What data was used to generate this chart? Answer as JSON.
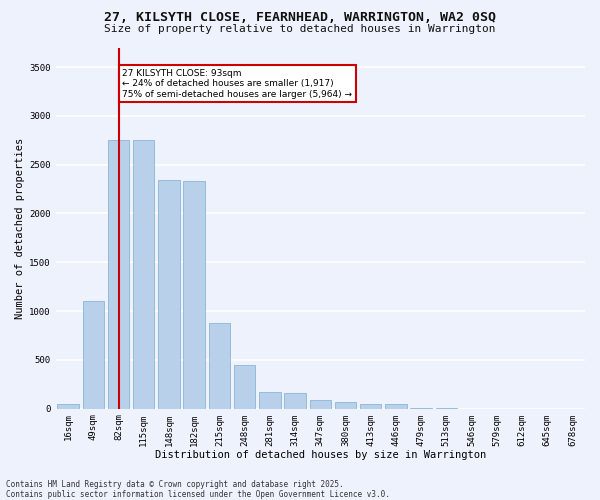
{
  "title_line1": "27, KILSYTH CLOSE, FEARNHEAD, WARRINGTON, WA2 0SQ",
  "title_line2": "Size of property relative to detached houses in Warrington",
  "xlabel": "Distribution of detached houses by size in Warrington",
  "ylabel": "Number of detached properties",
  "bar_color": "#b8d0ea",
  "bar_edge_color": "#7aaed4",
  "categories": [
    "16sqm",
    "49sqm",
    "82sqm",
    "115sqm",
    "148sqm",
    "182sqm",
    "215sqm",
    "248sqm",
    "281sqm",
    "314sqm",
    "347sqm",
    "380sqm",
    "413sqm",
    "446sqm",
    "479sqm",
    "513sqm",
    "546sqm",
    "579sqm",
    "612sqm",
    "645sqm",
    "678sqm"
  ],
  "values": [
    50,
    1100,
    2750,
    2750,
    2340,
    2330,
    880,
    450,
    175,
    165,
    90,
    65,
    45,
    45,
    10,
    10,
    0,
    0,
    0,
    0,
    0
  ],
  "ylim": [
    0,
    3700
  ],
  "yticks": [
    0,
    500,
    1000,
    1500,
    2000,
    2500,
    3000,
    3500
  ],
  "vline_x": 2.0,
  "vline_color": "#cc0000",
  "annotation_text": "27 KILSYTH CLOSE: 93sqm\n← 24% of detached houses are smaller (1,917)\n75% of semi-detached houses are larger (5,964) →",
  "annotation_box_facecolor": "#ffffff",
  "annotation_box_edgecolor": "#cc0000",
  "background_color": "#eef2fc",
  "grid_color": "#ffffff",
  "footer_line1": "Contains HM Land Registry data © Crown copyright and database right 2025.",
  "footer_line2": "Contains public sector information licensed under the Open Government Licence v3.0.",
  "title_fontsize": 9.5,
  "subtitle_fontsize": 8,
  "axis_label_fontsize": 7.5,
  "tick_fontsize": 6.5,
  "annotation_fontsize": 6.5,
  "footer_fontsize": 5.5
}
